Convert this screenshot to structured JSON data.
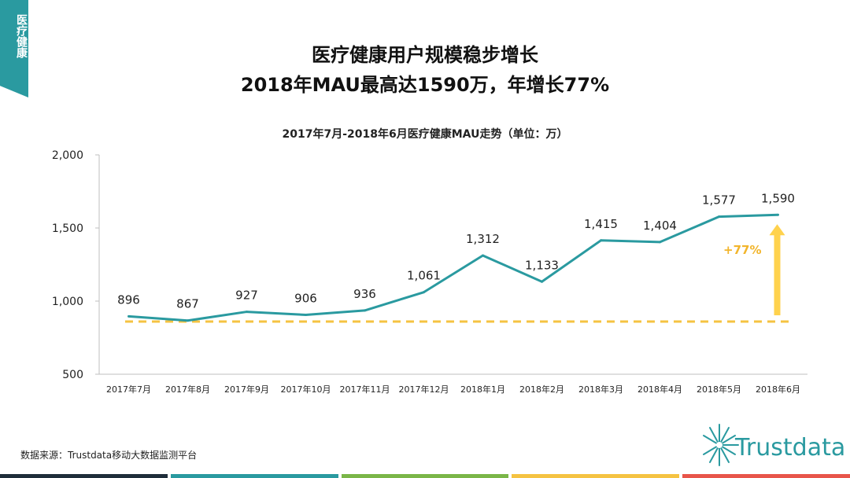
{
  "side_tab": {
    "label": "医疗健康"
  },
  "headline": {
    "line1": "医疗健康用户规模稳步增长",
    "line2": "2018年MAU最高达1590万，年增长77%"
  },
  "chart_data": {
    "type": "line",
    "title": "2017年7月-2018年6月医疗健康MAU走势（单位：万）",
    "categories": [
      "2017年7月",
      "2017年8月",
      "2017年9月",
      "2017年10月",
      "2017年11月",
      "2017年12月",
      "2018年1月",
      "2018年2月",
      "2018年3月",
      "2018年4月",
      "2018年5月",
      "2018年6月"
    ],
    "values": [
      896,
      867,
      927,
      906,
      936,
      1061,
      1312,
      1133,
      1415,
      1404,
      1577,
      1590
    ],
    "data_labels": [
      "896",
      "867",
      "927",
      "906",
      "936",
      "1,061",
      "1,312",
      "1,133",
      "1,415",
      "1,404",
      "1,577",
      "1,590"
    ],
    "ylim": [
      500,
      2000
    ],
    "yticks": [
      500,
      1000,
      1500,
      2000
    ],
    "ytick_labels": [
      "500",
      "1,000",
      "1,500",
      "2,000"
    ],
    "baseline_value": 860,
    "growth_label": "+77%",
    "colors": {
      "line": "#2a9aa0",
      "baseline": "#f5c342",
      "arrow": "#ffd24d",
      "growth_text": "#f2b52c"
    }
  },
  "footer": {
    "source": "数据来源：Trustdata移动大数据监测平台",
    "logo_text": "Trustdata"
  },
  "bottom_bar_colors": [
    "#1f2d3a",
    "#2a9aa0",
    "#7ab648",
    "#f5c342",
    "#e8554a"
  ]
}
